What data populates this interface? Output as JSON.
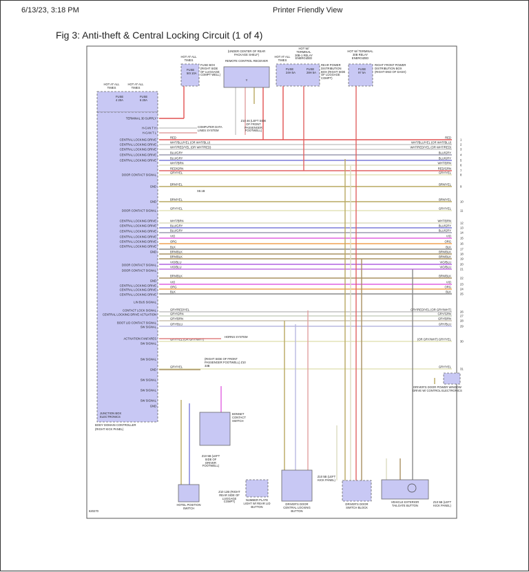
{
  "header": {
    "date_time": "6/13/23, 3:18 PM",
    "view_title": "Printer Friendly View"
  },
  "figure": {
    "title": "Fig 3: Anti-theft & Central Locking Circuit (1 of 4)",
    "code": "620270",
    "controller": {
      "label": "JUNCTION BOX ELECTRONICS",
      "name": "BODY DOMAIN CONTROLLER",
      "location": "(RIGHT KICK PANEL)"
    },
    "fuses_left": [
      {
        "hot": "HOT AT ALL TIMES",
        "fuse": "FUSE 4 20A"
      },
      {
        "hot": "HOT AT ALL TIMES",
        "fuse": "FUSE 6 20A"
      }
    ],
    "fuse_box": {
      "hot": "HOT AT ALL TIMES",
      "fuse": "FUSE 50I 10A",
      "label": "FUSE BOX (RIGHT SIDE OF LUGGAGE COMPT WELL)"
    },
    "receiver": {
      "location": "(UNDER CENTER OF REAR PACKAGE SHELF)",
      "label": "REMOTE CONTROL RECEIVER"
    },
    "rear_power": {
      "hot1": "HOT AT ALL TIMES",
      "fuse1": "FUSE 24H 5A",
      "hot2": "HOT W/ TERMINAL 30B-1 RELAY ENERGIZED",
      "fuse2": "FUSE 28H 5A",
      "label": "REAR POWER DISTRIBUTION BOX (RIGHT SIDE OF LUGGAGE COMPT)"
    },
    "front_power": {
      "hot": "HOT W/ TERMINAL 30B RELAY ENERGIZED",
      "fuse": "FUSE 97 5A",
      "label": "RIGHT FRONT POWER DISTRIBUTION BOX (RIGHT END OF DASH)"
    },
    "computer_data": "COMPUTER DATA LINES SYSTEM",
    "ground_z1046": "Z10 46 (LEFT SIDE OF FRONT PASSENGER FOOTWELL)",
    "horns": "HORNS SYSTEM",
    "ground_front": "(RIGHT SIDE OF FRONT PASSENGER FOOTWELL) Z10 33B",
    "connector": "X8.1B",
    "left_labels": [
      "TERMINAL 30 SUPPLY",
      "H-CAN T H",
      "H-CAN T L",
      "CENTRAL LOCKING DRIVE",
      "CENTRAL LOCKING DRIVE",
      "CENTRAL LOCKING DRIVE",
      "CENTRAL LOCKING DRIVE",
      "CENTRAL LOCKING DRIVE",
      "DOOR CONTACT SIGNAL",
      "GND",
      "GND",
      "DOOR CONTACT SIGNAL",
      "CENTRAL LOCKING DRIVE",
      "CENTRAL LOCKING DRIVE",
      "CENTRAL LOCKING DRIVE",
      "CENTRAL LOCKING DRIVE",
      "CENTRAL LOCKING DRIVE",
      "CENTRAL LOCKING DRIVE",
      "GND",
      "DOOR CONTACT SIGNAL",
      "DOOR CONTACT SIGNAL",
      "GND",
      "CENTRAL LOCKING DRIVE",
      "CENTRAL LOCKING DRIVE",
      "CENTRAL LOCKING DRIVE",
      "LIN BUS SIGNAL",
      "CONTACT LOCK SIGNAL",
      "CENTRAL LOCKING DRIVE ACTUATION",
      "BOOT LID CONTACT SIGNAL",
      "SW SIGNAL",
      "ACTIVATION FANFARES",
      "SW SIGNAL",
      "SW SIGNAL",
      "GND",
      "SW SIGNAL",
      "SW SIGNAL",
      "SW SIGNAL",
      "GND"
    ],
    "wires": [
      {
        "code": "RED",
        "right": "RED",
        "num": "1",
        "color": "#e05050"
      },
      {
        "code": "WHT/BLU/YEL  (OR WHT/BLU)",
        "right": "WHT/BLU/YEL (OR WHT/BLU)",
        "num": "2",
        "color": "#c8c8c8"
      },
      {
        "code": "WHT/RED/YEL  (OR WHT/RED)",
        "right": "WHT/RED/YEL (OR WHT/RED)",
        "num": "3",
        "color": "#c8c8c8"
      },
      {
        "code": "BLU/GRY",
        "right": "BLU/GRY",
        "num": "4",
        "color": "#9a9ab0"
      },
      {
        "code": "BLU/GRY",
        "right": "BLU/GRY",
        "num": "5",
        "color": "#7a7ad8"
      },
      {
        "code": "WHT/BRN",
        "right": "WHT/BRN",
        "num": "6",
        "color": "#dcdcc0"
      },
      {
        "code": "RED/GRN",
        "right": "RED/GRN",
        "num": "7",
        "color": "#e06060"
      },
      {
        "code": "GRY/YEL",
        "right": "GRY/YEL",
        "num": "8",
        "color": "#e4e4b8"
      },
      {
        "code": "BRN/YEL",
        "right": "BRN/YEL",
        "num": "9",
        "color": "#b8a860"
      },
      {
        "code": "BRN/YEL",
        "right": "BRN/YEL",
        "num": "10",
        "color": "#b8a860"
      },
      {
        "code": "GRY/YEL",
        "right": "GRY/YEL",
        "num": "11",
        "color": "#e4e4b8"
      },
      {
        "code": "WHT/BRN",
        "right": "WHT/BRN",
        "num": "12",
        "color": "#dcdcc0"
      },
      {
        "code": "BLU/GRY",
        "right": "BLU/GRY",
        "num": "13",
        "color": "#7a7ad8"
      },
      {
        "code": "BLU/GRY",
        "right": "BLU/GRY",
        "num": "14",
        "color": "#9a9ab0"
      },
      {
        "code": "VIO",
        "right": "VIO",
        "num": "15",
        "color": "#e060e0"
      },
      {
        "code": "ORG",
        "right": "ORG",
        "num": "16",
        "color": "#f0a050"
      },
      {
        "code": "BLK",
        "right": "BLK",
        "num": "17",
        "color": "#888888"
      },
      {
        "code": "BRN/BLK",
        "right": "BRN/BLK",
        "num": "18",
        "color": "#a89060"
      },
      {
        "code": "BRN/BLK",
        "right": "BRN/BLK",
        "num": "19",
        "color": "#a89060"
      },
      {
        "code": "VIO/BLU",
        "right": "VIO/BLU",
        "num": "20",
        "color": "#b060e0"
      },
      {
        "code": "VIO/BLU",
        "right": "VIO/BLU",
        "num": "21",
        "color": "#c070e0"
      },
      {
        "code": "BRN/BLK",
        "right": "BRN/BLK",
        "num": "22",
        "color": "#a89060"
      },
      {
        "code": "VIO",
        "right": "VIO",
        "num": "23",
        "color": "#e060e0"
      },
      {
        "code": "ORG",
        "right": "ORG",
        "num": "24",
        "color": "#f0a050"
      },
      {
        "code": "BLK",
        "right": "BLK",
        "num": "25",
        "color": "#888888"
      },
      {
        "code": "GRY/RED/YEL",
        "right": "GRY/RED/YEL (OR GRY/WHT)",
        "num": "26",
        "color": "#c0c0c0"
      },
      {
        "code": "GRY/GRN",
        "right": "GRY/GRN",
        "num": "27",
        "color": "#c8d0c0"
      },
      {
        "code": "GRY/BRN",
        "right": "GRY/BRN",
        "num": "28",
        "color": "#c8c0b0"
      },
      {
        "code": "GRY/BLU",
        "right": "GRY/BLU",
        "num": "29",
        "color": "#b8b8e0"
      },
      {
        "code": "GRY/YEL  (OR GRY/WHT)",
        "right": "(OR GRY/WHT) GRY/YEL",
        "num": "30",
        "color": "#e4e4b8"
      },
      {
        "code": "GRY/YEL",
        "right": "GRY/YEL",
        "num": "31",
        "color": "#e4e4b8"
      }
    ],
    "components": [
      {
        "name": "HOTEL POSITION SWITCH"
      },
      {
        "name": "BONNET CONTACT SWITCH"
      },
      {
        "name": "NUMBER PLATE LIGHT W/ REAR LID BUTTON"
      },
      {
        "name": "DRIVER'S DOOR CENTRAL LOCKING BUTTON"
      },
      {
        "name": "DRIVER'S DOOR SWITCH BLOCK"
      },
      {
        "name": "VEHICLE EXTERIOR TAILGATE BUTTON"
      },
      {
        "name": "DRIVER'S DOOR POWER WINDOW DRIVE W/ CONTROL ELECTRONICS"
      }
    ],
    "grounds": [
      "Z10 5B (LEFT SIDE OF DRIVER FOOTWELL)",
      "Z10 12B (RIGHT REAR SIDE OF LUGGAGE COMPT)",
      "Z10 5B (LEFT KICK PANEL)",
      "Z10 5B (LEFT KICK PANEL)"
    ]
  }
}
